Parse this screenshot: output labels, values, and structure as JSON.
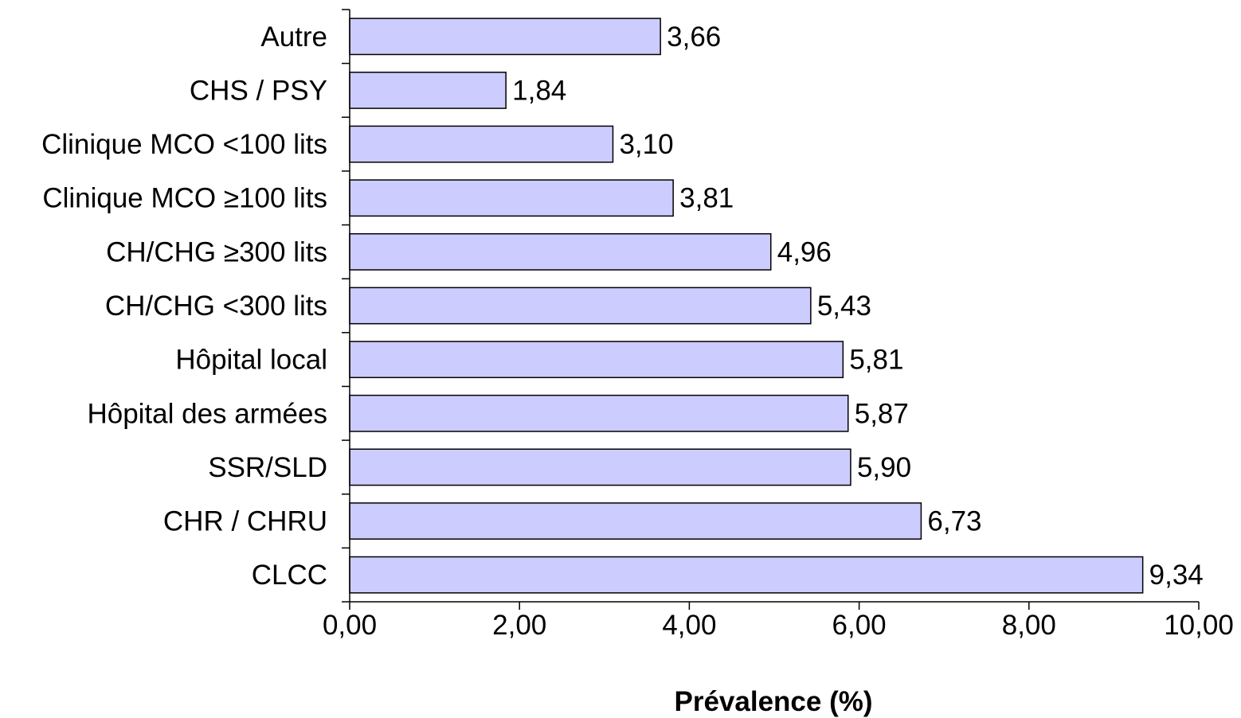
{
  "chart_data": {
    "type": "bar",
    "orientation": "horizontal",
    "categories": [
      "Autre",
      "CHS / PSY",
      "Clinique MCO <100 lits",
      "Clinique MCO ≥100 lits",
      "CH/CHG ≥300 lits",
      "CH/CHG <300 lits",
      "Hôpital local",
      "Hôpital des armées",
      "SSR/SLD",
      "CHR / CHRU",
      "CLCC"
    ],
    "values": [
      3.66,
      1.84,
      3.1,
      3.81,
      4.96,
      5.43,
      5.81,
      5.87,
      5.9,
      6.73,
      9.34
    ],
    "value_labels": [
      "3,66",
      "1,84",
      "3,10",
      "3,81",
      "4,96",
      "5,43",
      "5,81",
      "5,87",
      "5,90",
      "6,73",
      "9,34"
    ],
    "xlabel": "Prévalence (%)",
    "xlim": [
      0,
      10
    ],
    "x_ticks": [
      0,
      2,
      4,
      6,
      8,
      10
    ],
    "x_tick_labels": [
      "0,00",
      "2,00",
      "4,00",
      "6,00",
      "8,00",
      "10,00"
    ],
    "grid": false,
    "legend": "none",
    "bar_color": "#ccccff",
    "bar_edge_color": "#000000"
  }
}
